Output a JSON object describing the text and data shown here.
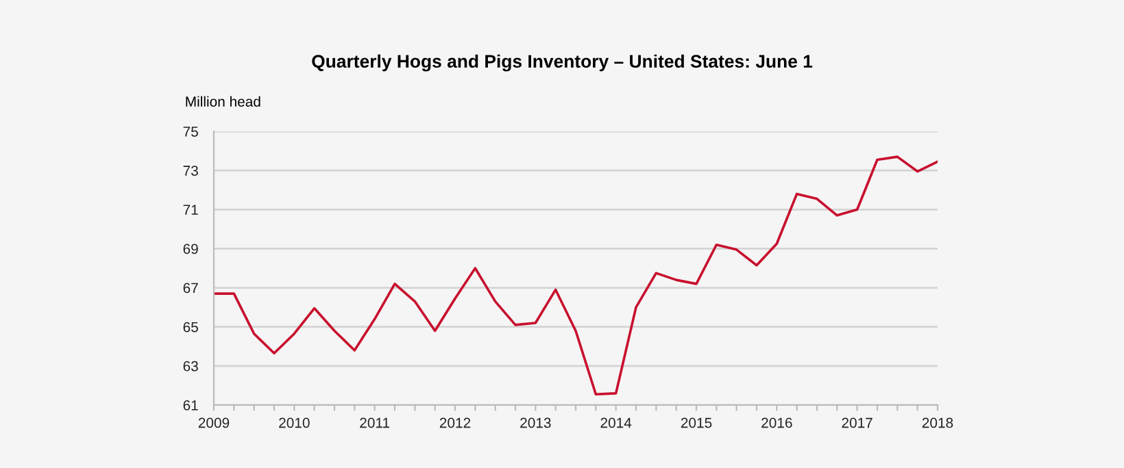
{
  "chart_data": {
    "type": "line",
    "title": "Quarterly Hogs and Pigs Inventory – United States: June 1",
    "ylabel": "Million head",
    "x": [
      2009,
      2009.25,
      2009.5,
      2009.75,
      2010,
      2010.25,
      2010.5,
      2010.75,
      2011,
      2011.25,
      2011.5,
      2011.75,
      2012,
      2012.25,
      2012.5,
      2012.75,
      2013,
      2013.25,
      2013.5,
      2013.75,
      2014,
      2014.25,
      2014.5,
      2014.75,
      2015,
      2015.25,
      2015.5,
      2015.75,
      2016,
      2016.25,
      2016.5,
      2016.75,
      2017,
      2017.25,
      2017.5,
      2017.75,
      2018
    ],
    "series": [
      {
        "color": "#c8102e",
        "values": [
          66.7,
          66.7,
          64.65,
          63.65,
          64.65,
          65.95,
          64.8,
          63.8,
          65.4,
          67.2,
          66.3,
          64.8,
          66.45,
          68.0,
          66.3,
          65.1,
          65.2,
          66.9,
          64.8,
          61.55,
          61.6,
          66.0,
          67.75,
          67.4,
          67.2,
          69.2,
          68.95,
          68.15,
          69.25,
          71.8,
          71.55,
          70.7,
          71.0,
          73.55,
          73.7,
          72.95,
          73.45
        ]
      }
    ],
    "xlim": [
      2009,
      2018
    ],
    "xticks": [
      2009,
      {
        "value": 2009.25,
        "label": null
      },
      {
        "value": 2009.5,
        "label": null
      },
      {
        "value": 2009.75,
        "label": null
      },
      2010,
      {
        "value": 2010.25,
        "label": null
      },
      {
        "value": 2010.5,
        "label": null
      },
      {
        "value": 2010.75,
        "label": null
      },
      2011,
      {
        "value": 2011.25,
        "label": null
      },
      {
        "value": 2011.5,
        "label": null
      },
      {
        "value": 2011.75,
        "label": null
      },
      2012,
      {
        "value": 2012.25,
        "label": null
      },
      {
        "value": 2012.5,
        "label": null
      },
      {
        "value": 2012.75,
        "label": null
      },
      2013,
      {
        "value": 2013.25,
        "label": null
      },
      {
        "value": 2013.5,
        "label": null
      },
      {
        "value": 2013.75,
        "label": null
      },
      2014,
      {
        "value": 2014.25,
        "label": null
      },
      {
        "value": 2014.5,
        "label": null
      },
      {
        "value": 2014.75,
        "label": null
      },
      2015,
      {
        "value": 2015.25,
        "label": null
      },
      {
        "value": 2015.5,
        "label": null
      },
      {
        "value": 2015.75,
        "label": null
      },
      2016,
      {
        "value": 2016.25,
        "label": null
      },
      {
        "value": 2016.5,
        "label": null
      },
      {
        "value": 2016.75,
        "label": null
      },
      2017,
      {
        "value": 2017.25,
        "label": null
      },
      {
        "value": 2017.5,
        "label": null
      },
      {
        "value": 2017.75,
        "label": null
      },
      2018
    ],
    "ylim": [
      61,
      75
    ],
    "yticks": [
      61,
      63,
      65,
      67,
      69,
      71,
      73,
      75
    ],
    "grid": "y",
    "legend": false
  }
}
